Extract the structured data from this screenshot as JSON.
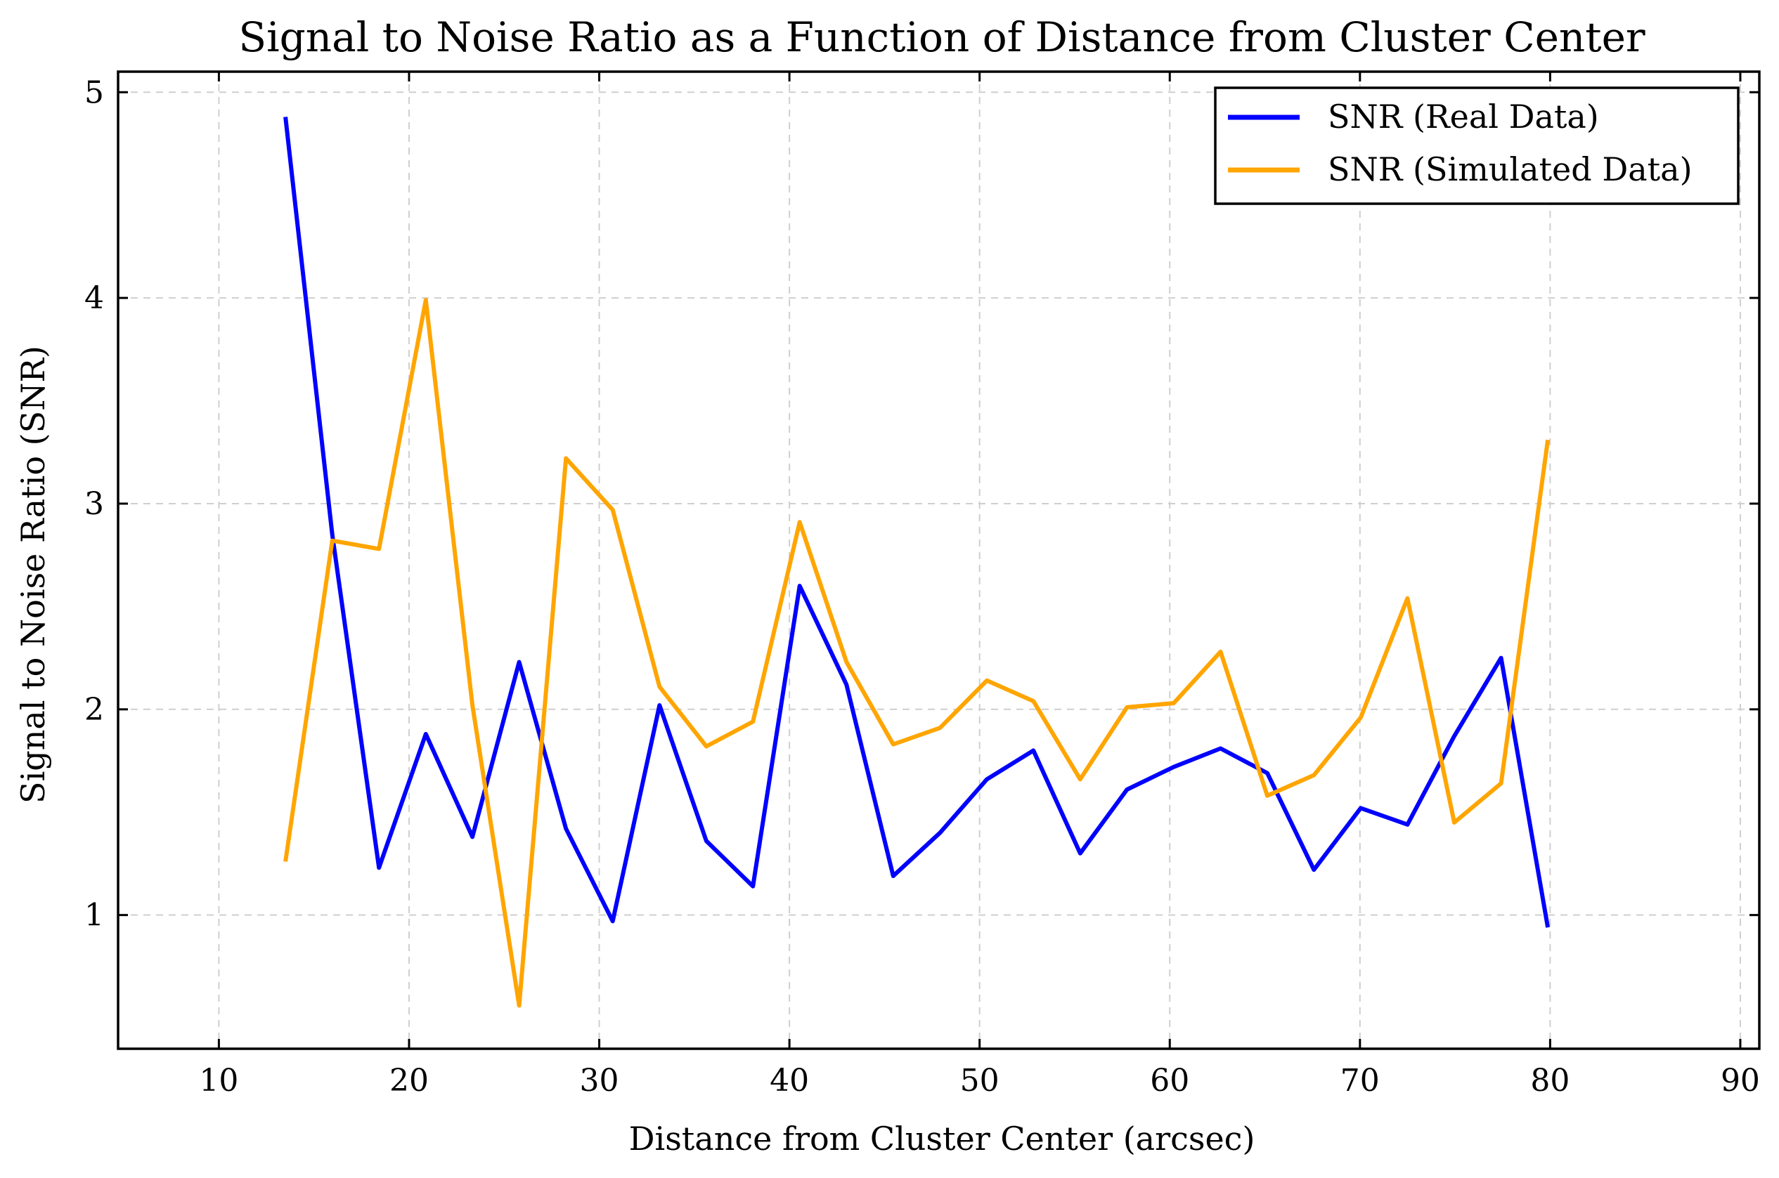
{
  "chart_data": {
    "type": "line",
    "title": "Signal to Noise Ratio as a Function of Distance from Cluster Center",
    "xlabel": "Distance from Cluster Center (arcsec)",
    "ylabel": "Signal to Noise Ratio (SNR)",
    "xlim": [
      4.7,
      91
    ],
    "ylim": [
      0.35,
      5.1
    ],
    "xticks": [
      10,
      20,
      30,
      40,
      50,
      60,
      70,
      80,
      90
    ],
    "yticks": [
      1,
      2,
      3,
      4,
      5
    ],
    "xtick_labels": [
      "10",
      "20",
      "30",
      "40",
      "50",
      "60",
      "70",
      "80",
      "90"
    ],
    "ytick_labels": [
      "1",
      "2",
      "3",
      "4",
      "5"
    ],
    "grid": true,
    "legend_position": "top-right",
    "x": [
      13.5,
      15.96,
      18.42,
      20.88,
      23.33,
      25.79,
      28.25,
      30.71,
      33.17,
      35.63,
      38.08,
      40.54,
      43.0,
      45.46,
      47.92,
      50.38,
      52.83,
      55.29,
      57.75,
      60.21,
      62.67,
      65.13,
      67.58,
      70.04,
      72.5,
      74.96,
      77.42,
      79.88
    ],
    "series": [
      {
        "name": "SNR (Real Data)",
        "color": "#0000ff",
        "values": [
          4.88,
          2.85,
          1.23,
          1.88,
          1.38,
          2.23,
          1.42,
          0.97,
          2.02,
          1.36,
          1.14,
          2.6,
          2.12,
          1.19,
          1.4,
          1.66,
          1.8,
          1.3,
          1.61,
          1.72,
          1.81,
          1.69,
          1.22,
          1.52,
          1.44,
          1.87,
          2.25,
          0.94
        ]
      },
      {
        "name": "SNR (Simulated Data)",
        "color": "#ffa500",
        "values": [
          1.26,
          2.82,
          2.78,
          3.99,
          2.02,
          0.56,
          3.22,
          2.97,
          2.11,
          1.82,
          1.94,
          2.91,
          2.23,
          1.83,
          1.91,
          2.14,
          2.04,
          1.66,
          2.01,
          2.03,
          2.28,
          1.58,
          1.68,
          1.96,
          2.54,
          1.45,
          1.64,
          3.31
        ]
      }
    ]
  }
}
